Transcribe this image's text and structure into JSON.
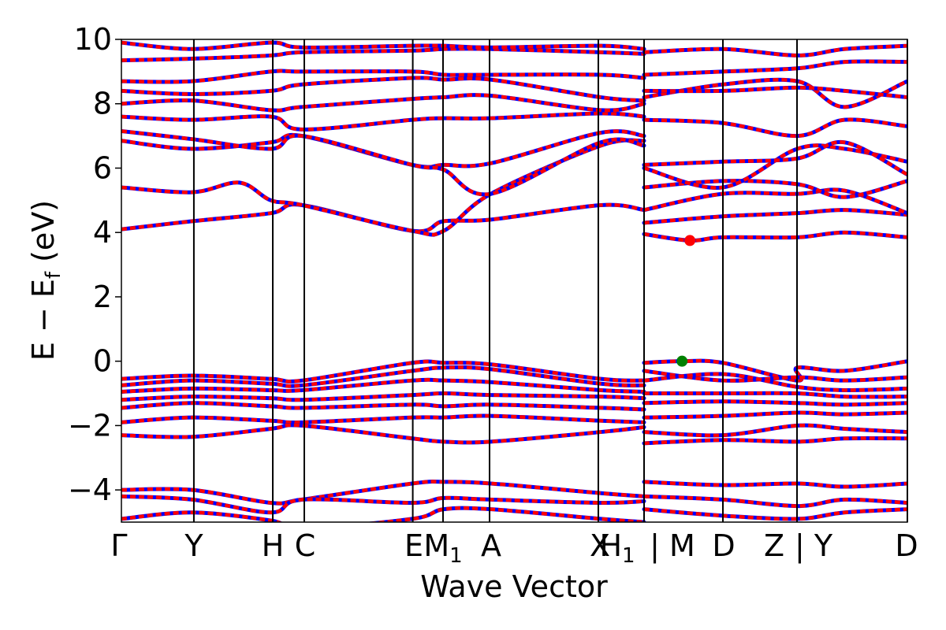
{
  "chart_data": {
    "type": "line",
    "title": "",
    "xlabel": "Wave Vector",
    "ylabel": "E − E",
    "ylabel_sub": "f",
    "ylabel_unit": " (eV)",
    "ylim": [
      -5,
      10
    ],
    "yticks": [
      -4,
      -2,
      0,
      2,
      4,
      6,
      8,
      10
    ],
    "ytick_labels": [
      "−4",
      "−2",
      "0",
      "2",
      "4",
      "6",
      "8",
      "10"
    ],
    "kpoints": [
      {
        "label": "Γ",
        "x": 0.0
      },
      {
        "label": "Y",
        "x": 0.0922
      },
      {
        "label": "H",
        "x": 0.1926
      },
      {
        "label": "C",
        "x": 0.2327
      },
      {
        "label": "E",
        "x": 0.3707
      },
      {
        "label": "M",
        "sub": "1",
        "x": 0.4092
      },
      {
        "label": "A",
        "x": 0.4684
      },
      {
        "label": "X",
        "x": 0.6068
      },
      {
        "label": "H",
        "sub": "1",
        "x": 0.665
      },
      {
        "label": "M",
        "x": 0.7653
      },
      {
        "label": "D",
        "x": 0.8596
      },
      {
        "label": "Z",
        "x": 0.8636
      },
      {
        "label": "Y",
        "x": 0.8686
      },
      {
        "label": "D",
        "x": 1.0
      }
    ],
    "tick_label_text": [
      "Γ",
      "Y",
      "H",
      "C",
      "E",
      "M",
      "A",
      "X",
      "H",
      "| M",
      "D",
      "Z",
      "| Y",
      "D"
    ],
    "path_breaks": [
      "X|H1 → M",
      "Z|Y"
    ],
    "series_colors": [
      "#ff0000",
      "#0000ff"
    ],
    "vbm_marker": {
      "x": 0.7133,
      "y": 0.0,
      "color": "#008000"
    },
    "cbm_marker": {
      "x": 0.7233,
      "y": 3.75,
      "color": "#ff0000"
    },
    "valence_bands": [
      [
        [
          0,
          -0.55
        ],
        [
          0.09,
          -0.45
        ],
        [
          0.19,
          -0.55
        ],
        [
          0.23,
          -0.6
        ],
        [
          0.37,
          -0.05
        ],
        [
          0.41,
          -0.05
        ],
        [
          0.47,
          -0.1
        ],
        [
          0.61,
          -0.55
        ],
        [
          0.665,
          -0.6
        ]
      ],
      [
        [
          0,
          -0.75
        ],
        [
          0.09,
          -0.6
        ],
        [
          0.19,
          -0.7
        ],
        [
          0.23,
          -0.75
        ],
        [
          0.37,
          -0.3
        ],
        [
          0.41,
          -0.2
        ],
        [
          0.47,
          -0.25
        ],
        [
          0.61,
          -0.7
        ],
        [
          0.665,
          -0.75
        ]
      ],
      [
        [
          0,
          -0.95
        ],
        [
          0.09,
          -0.85
        ],
        [
          0.19,
          -0.9
        ],
        [
          0.23,
          -0.9
        ],
        [
          0.37,
          -0.6
        ],
        [
          0.41,
          -0.6
        ],
        [
          0.47,
          -0.65
        ],
        [
          0.61,
          -0.9
        ],
        [
          0.665,
          -0.95
        ]
      ],
      [
        [
          0,
          -1.2
        ],
        [
          0.09,
          -1.1
        ],
        [
          0.19,
          -1.15
        ],
        [
          0.23,
          -1.2
        ],
        [
          0.37,
          -1.05
        ],
        [
          0.41,
          -1.0
        ],
        [
          0.47,
          -1.05
        ],
        [
          0.61,
          -1.1
        ],
        [
          0.665,
          -1.15
        ]
      ],
      [
        [
          0,
          -1.45
        ],
        [
          0.09,
          -1.3
        ],
        [
          0.19,
          -1.4
        ],
        [
          0.23,
          -1.45
        ],
        [
          0.37,
          -1.35
        ],
        [
          0.41,
          -1.4
        ],
        [
          0.47,
          -1.35
        ],
        [
          0.61,
          -1.45
        ],
        [
          0.665,
          -1.5
        ]
      ],
      [
        [
          0,
          -1.9
        ],
        [
          0.09,
          -1.75
        ],
        [
          0.19,
          -1.85
        ],
        [
          0.23,
          -1.9
        ],
        [
          0.37,
          -1.75
        ],
        [
          0.41,
          -1.75
        ],
        [
          0.47,
          -1.7
        ],
        [
          0.61,
          -1.85
        ],
        [
          0.665,
          -1.9
        ]
      ],
      [
        [
          0,
          -2.3
        ],
        [
          0.09,
          -2.35
        ],
        [
          0.19,
          -2.1
        ],
        [
          0.23,
          -2.0
        ],
        [
          0.37,
          -2.4
        ],
        [
          0.41,
          -2.5
        ],
        [
          0.47,
          -2.5
        ],
        [
          0.61,
          -2.2
        ],
        [
          0.665,
          -2.05
        ]
      ],
      [
        [
          0,
          -4.0
        ],
        [
          0.09,
          -4.0
        ],
        [
          0.19,
          -4.4
        ],
        [
          0.23,
          -4.3
        ],
        [
          0.37,
          -3.8
        ],
        [
          0.41,
          -3.75
        ],
        [
          0.47,
          -3.8
        ],
        [
          0.61,
          -4.1
        ],
        [
          0.665,
          -4.2
        ]
      ],
      [
        [
          0,
          -4.2
        ],
        [
          0.09,
          -4.3
        ],
        [
          0.19,
          -4.7
        ],
        [
          0.23,
          -4.3
        ],
        [
          0.37,
          -4.4
        ],
        [
          0.41,
          -4.25
        ],
        [
          0.47,
          -4.3
        ],
        [
          0.61,
          -4.4
        ],
        [
          0.665,
          -4.35
        ]
      ],
      [
        [
          0,
          -4.9
        ],
        [
          0.09,
          -4.7
        ],
        [
          0.19,
          -4.95
        ],
        [
          0.23,
          -5.2
        ],
        [
          0.37,
          -4.9
        ],
        [
          0.41,
          -4.6
        ],
        [
          0.47,
          -4.6
        ],
        [
          0.61,
          -4.9
        ],
        [
          0.665,
          -5.0
        ]
      ],
      [
        [
          0.665,
          -0.05
        ],
        [
          0.7133,
          0.0
        ],
        [
          0.765,
          -0.05
        ],
        [
          0.86,
          -0.6
        ],
        [
          0.86,
          -0.2
        ],
        [
          0.92,
          -0.3
        ],
        [
          1.0,
          0.0
        ]
      ],
      [
        [
          0.665,
          -0.3
        ],
        [
          0.765,
          -0.6
        ],
        [
          0.86,
          -0.5
        ],
        [
          0.92,
          -0.6
        ],
        [
          1.0,
          -0.5
        ]
      ],
      [
        [
          0.665,
          -0.6
        ],
        [
          0.765,
          -0.4
        ],
        [
          0.86,
          -0.8
        ],
        [
          0.92,
          -0.9
        ],
        [
          1.0,
          -0.85
        ]
      ],
      [
        [
          0.665,
          -1.0
        ],
        [
          0.765,
          -1.0
        ],
        [
          0.86,
          -1.0
        ],
        [
          0.92,
          -1.1
        ],
        [
          1.0,
          -1.1
        ]
      ],
      [
        [
          0.665,
          -1.3
        ],
        [
          0.765,
          -1.25
        ],
        [
          0.86,
          -1.3
        ],
        [
          0.92,
          -1.35
        ],
        [
          1.0,
          -1.3
        ]
      ],
      [
        [
          0.665,
          -1.75
        ],
        [
          0.765,
          -1.7
        ],
        [
          0.86,
          -1.6
        ],
        [
          0.92,
          -1.65
        ],
        [
          1.0,
          -1.6
        ]
      ],
      [
        [
          0.665,
          -2.2
        ],
        [
          0.765,
          -2.3
        ],
        [
          0.86,
          -2.0
        ],
        [
          0.92,
          -2.1
        ],
        [
          1.0,
          -2.2
        ]
      ],
      [
        [
          0.665,
          -2.55
        ],
        [
          0.765,
          -2.45
        ],
        [
          0.86,
          -2.5
        ],
        [
          0.92,
          -2.4
        ],
        [
          1.0,
          -2.4
        ]
      ],
      [
        [
          0.665,
          -3.75
        ],
        [
          0.765,
          -3.85
        ],
        [
          0.86,
          -3.8
        ],
        [
          0.92,
          -3.9
        ],
        [
          1.0,
          -3.8
        ]
      ],
      [
        [
          0.665,
          -4.2
        ],
        [
          0.765,
          -4.3
        ],
        [
          0.86,
          -4.5
        ],
        [
          0.92,
          -4.3
        ],
        [
          1.0,
          -4.4
        ]
      ],
      [
        [
          0.665,
          -4.6
        ],
        [
          0.765,
          -4.8
        ],
        [
          0.86,
          -4.9
        ],
        [
          0.92,
          -4.7
        ],
        [
          1.0,
          -4.6
        ]
      ]
    ],
    "conduction_bands": [
      [
        [
          0,
          4.1
        ],
        [
          0.09,
          4.35
        ],
        [
          0.19,
          4.6
        ],
        [
          0.23,
          4.85
        ],
        [
          0.37,
          4.05
        ],
        [
          0.41,
          4.35
        ],
        [
          0.47,
          4.4
        ],
        [
          0.61,
          4.85
        ],
        [
          0.665,
          4.7
        ]
      ],
      [
        [
          0,
          5.4
        ],
        [
          0.09,
          5.25
        ],
        [
          0.15,
          5.55
        ],
        [
          0.19,
          5.0
        ],
        [
          0.23,
          4.85
        ],
        [
          0.37,
          4.05
        ],
        [
          0.41,
          4.05
        ],
        [
          0.47,
          5.2
        ],
        [
          0.61,
          6.7
        ],
        [
          0.665,
          6.85
        ]
      ],
      [
        [
          0,
          6.85
        ],
        [
          0.09,
          6.6
        ],
        [
          0.19,
          6.8
        ],
        [
          0.23,
          7.0
        ],
        [
          0.37,
          6.1
        ],
        [
          0.41,
          6.1
        ],
        [
          0.47,
          6.15
        ],
        [
          0.61,
          7.1
        ],
        [
          0.665,
          7.0
        ]
      ],
      [
        [
          0,
          7.15
        ],
        [
          0.09,
          6.9
        ],
        [
          0.19,
          6.6
        ],
        [
          0.23,
          7.0
        ],
        [
          0.37,
          6.1
        ],
        [
          0.41,
          5.95
        ],
        [
          0.47,
          5.2
        ],
        [
          0.61,
          6.8
        ],
        [
          0.665,
          6.7
        ]
      ],
      [
        [
          0,
          7.6
        ],
        [
          0.09,
          7.5
        ],
        [
          0.19,
          7.6
        ],
        [
          0.23,
          7.2
        ],
        [
          0.37,
          7.5
        ],
        [
          0.41,
          7.55
        ],
        [
          0.47,
          7.55
        ],
        [
          0.61,
          7.7
        ],
        [
          0.665,
          7.6
        ]
      ],
      [
        [
          0,
          8.0
        ],
        [
          0.09,
          8.1
        ],
        [
          0.19,
          7.8
        ],
        [
          0.23,
          7.9
        ],
        [
          0.37,
          8.15
        ],
        [
          0.41,
          8.2
        ],
        [
          0.47,
          8.25
        ],
        [
          0.61,
          7.8
        ],
        [
          0.665,
          8.0
        ]
      ],
      [
        [
          0,
          8.4
        ],
        [
          0.09,
          8.3
        ],
        [
          0.19,
          8.4
        ],
        [
          0.23,
          8.6
        ],
        [
          0.37,
          8.8
        ],
        [
          0.41,
          8.75
        ],
        [
          0.47,
          8.75
        ],
        [
          0.61,
          8.2
        ],
        [
          0.665,
          8.1
        ]
      ],
      [
        [
          0,
          8.7
        ],
        [
          0.09,
          8.7
        ],
        [
          0.19,
          9.0
        ],
        [
          0.23,
          9.0
        ],
        [
          0.37,
          9.0
        ],
        [
          0.41,
          8.9
        ],
        [
          0.47,
          8.9
        ],
        [
          0.61,
          8.9
        ],
        [
          0.665,
          8.8
        ]
      ],
      [
        [
          0,
          9.35
        ],
        [
          0.09,
          9.4
        ],
        [
          0.19,
          9.5
        ],
        [
          0.23,
          9.6
        ],
        [
          0.37,
          9.65
        ],
        [
          0.41,
          9.7
        ],
        [
          0.47,
          9.7
        ],
        [
          0.61,
          9.6
        ],
        [
          0.665,
          9.55
        ]
      ],
      [
        [
          0,
          9.9
        ],
        [
          0.09,
          9.7
        ],
        [
          0.19,
          9.9
        ],
        [
          0.23,
          9.75
        ],
        [
          0.37,
          9.8
        ],
        [
          0.41,
          9.8
        ],
        [
          0.47,
          9.75
        ],
        [
          0.61,
          9.8
        ],
        [
          0.665,
          9.7
        ]
      ],
      [
        [
          0.665,
          3.95
        ],
        [
          0.7233,
          3.75
        ],
        [
          0.765,
          3.85
        ],
        [
          0.86,
          3.85
        ],
        [
          0.92,
          4.0
        ],
        [
          1.0,
          3.85
        ]
      ],
      [
        [
          0.665,
          4.3
        ],
        [
          0.765,
          4.5
        ],
        [
          0.86,
          4.6
        ],
        [
          0.92,
          4.7
        ],
        [
          1.0,
          4.55
        ]
      ],
      [
        [
          0.665,
          4.7
        ],
        [
          0.765,
          5.2
        ],
        [
          0.86,
          5.2
        ],
        [
          0.92,
          5.3
        ],
        [
          1.0,
          4.6
        ]
      ],
      [
        [
          0.665,
          5.4
        ],
        [
          0.765,
          5.6
        ],
        [
          0.86,
          5.5
        ],
        [
          0.92,
          5.1
        ],
        [
          1.0,
          5.6
        ]
      ],
      [
        [
          0.665,
          6.0
        ],
        [
          0.765,
          5.4
        ],
        [
          0.86,
          6.6
        ],
        [
          0.92,
          6.6
        ],
        [
          1.0,
          6.2
        ]
      ],
      [
        [
          0.665,
          6.1
        ],
        [
          0.765,
          6.2
        ],
        [
          0.86,
          6.3
        ],
        [
          0.92,
          6.8
        ],
        [
          1.0,
          5.8
        ]
      ],
      [
        [
          0.665,
          7.5
        ],
        [
          0.765,
          7.4
        ],
        [
          0.86,
          7.0
        ],
        [
          0.92,
          7.5
        ],
        [
          1.0,
          7.3
        ]
      ],
      [
        [
          0.665,
          8.2
        ],
        [
          0.765,
          8.6
        ],
        [
          0.86,
          8.7
        ],
        [
          0.92,
          7.9
        ],
        [
          1.0,
          8.7
        ]
      ],
      [
        [
          0.665,
          8.4
        ],
        [
          0.765,
          8.4
        ],
        [
          0.86,
          8.5
        ],
        [
          0.92,
          8.4
        ],
        [
          1.0,
          8.2
        ]
      ],
      [
        [
          0.665,
          8.9
        ],
        [
          0.765,
          9.0
        ],
        [
          0.86,
          9.1
        ],
        [
          0.92,
          9.3
        ],
        [
          1.0,
          9.3
        ]
      ],
      [
        [
          0.665,
          9.6
        ],
        [
          0.765,
          9.7
        ],
        [
          0.86,
          9.5
        ],
        [
          0.92,
          9.7
        ],
        [
          1.0,
          9.8
        ]
      ]
    ]
  }
}
